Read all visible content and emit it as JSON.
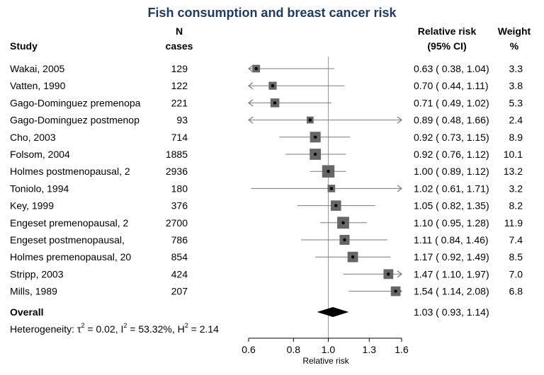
{
  "chart_data": {
    "type": "forest",
    "title": "Fish consumption and breast cancer risk",
    "headers": {
      "study": "Study",
      "n_line1": "N",
      "n_line2": "cases",
      "rr_line1": "Relative risk",
      "rr_line2": "(95% CI)",
      "w_line1": "Weight",
      "w_line2": "%"
    },
    "xlabel": "Relative risk",
    "xscale": "log",
    "xlim": [
      0.6,
      1.6
    ],
    "xticks": [
      0.6,
      0.8,
      1.0,
      1.3,
      1.6
    ],
    "xtick_labels": [
      "0.6",
      "0.8",
      "1.0",
      "1.3",
      "1.6"
    ],
    "reference_line": 1.0,
    "studies": [
      {
        "label": "Wakai, 2005",
        "n": "129",
        "rr": 0.63,
        "lo": 0.38,
        "hi": 1.04,
        "ci_text": "0.63 ( 0.38,  1.04)",
        "weight": "3.3",
        "w": 3.3
      },
      {
        "label": "Vatten, 1990",
        "n": "122",
        "rr": 0.7,
        "lo": 0.44,
        "hi": 1.11,
        "ci_text": "0.70 ( 0.44,  1.11)",
        "weight": "3.8",
        "w": 3.8
      },
      {
        "label": "Gago-Dominguez premenopa",
        "n": "221",
        "rr": 0.71,
        "lo": 0.49,
        "hi": 1.02,
        "ci_text": "0.71 ( 0.49,  1.02)",
        "weight": "5.3",
        "w": 5.3
      },
      {
        "label": "Gago-Dominguez postmenop",
        "n": "93",
        "rr": 0.89,
        "lo": 0.48,
        "hi": 1.66,
        "ci_text": "0.89 ( 0.48,  1.66)",
        "weight": "2.4",
        "w": 2.4
      },
      {
        "label": "Cho, 2003",
        "n": "714",
        "rr": 0.92,
        "lo": 0.73,
        "hi": 1.15,
        "ci_text": "0.92 ( 0.73,  1.15)",
        "weight": "8.9",
        "w": 8.9
      },
      {
        "label": "Folsom, 2004",
        "n": "1885",
        "rr": 0.92,
        "lo": 0.76,
        "hi": 1.12,
        "ci_text": "0.92 ( 0.76,  1.12)",
        "weight": "10.1",
        "w": 10.1
      },
      {
        "label": "Holmes postmenopausal, 2",
        "n": "2936",
        "rr": 1.0,
        "lo": 0.89,
        "hi": 1.12,
        "ci_text": "1.00 ( 0.89,  1.12)",
        "weight": "13.2",
        "w": 13.2
      },
      {
        "label": "Toniolo, 1994",
        "n": "180",
        "rr": 1.02,
        "lo": 0.61,
        "hi": 1.71,
        "ci_text": "1.02 ( 0.61,  1.71)",
        "weight": "3.2",
        "w": 3.2
      },
      {
        "label": "Key, 1999",
        "n": "376",
        "rr": 1.05,
        "lo": 0.82,
        "hi": 1.35,
        "ci_text": "1.05 ( 0.82,  1.35)",
        "weight": "8.2",
        "w": 8.2
      },
      {
        "label": "Engeset premenopausal, 2",
        "n": "2700",
        "rr": 1.1,
        "lo": 0.95,
        "hi": 1.28,
        "ci_text": "1.10 ( 0.95,  1.28)",
        "weight": "11.9",
        "w": 11.9
      },
      {
        "label": "Engeset postmenopausal,",
        "n": "786",
        "rr": 1.11,
        "lo": 0.84,
        "hi": 1.46,
        "ci_text": "1.11 ( 0.84,  1.46)",
        "weight": "7.4",
        "w": 7.4
      },
      {
        "label": "Holmes premenopausal, 20",
        "n": "854",
        "rr": 1.17,
        "lo": 0.92,
        "hi": 1.49,
        "ci_text": "1.17 ( 0.92,  1.49)",
        "weight": "8.5",
        "w": 8.5
      },
      {
        "label": "Stripp, 2003",
        "n": "424",
        "rr": 1.47,
        "lo": 1.1,
        "hi": 1.97,
        "ci_text": "1.47 ( 1.10,  1.97)",
        "weight": "7.0",
        "w": 7.0
      },
      {
        "label": "Mills, 1989",
        "n": "207",
        "rr": 1.54,
        "lo": 1.14,
        "hi": 2.08,
        "ci_text": "1.54 ( 1.14,  2.08)",
        "weight": "6.8",
        "w": 6.8
      }
    ],
    "overall": {
      "label": "Overall",
      "rr": 1.03,
      "lo": 0.93,
      "hi": 1.14,
      "ci_text": "1.03 ( 0.93,  1.14)"
    },
    "heterogeneity": {
      "prefix": "Heterogeneity: ",
      "tau_sym": "τ",
      "tau_sq": "2",
      "tau_val": " = 0.02, ",
      "i_sym": "I",
      "i_sq": "2",
      "i_val": " = 53.32%, ",
      "h_sym": "H",
      "h_sq": "2",
      "h_val": " = 2.14"
    },
    "colors": {
      "title": "#1f3b63",
      "box": "#666666",
      "line": "#7a7a7a",
      "diamond": "#000000",
      "ref": "#999999"
    }
  }
}
